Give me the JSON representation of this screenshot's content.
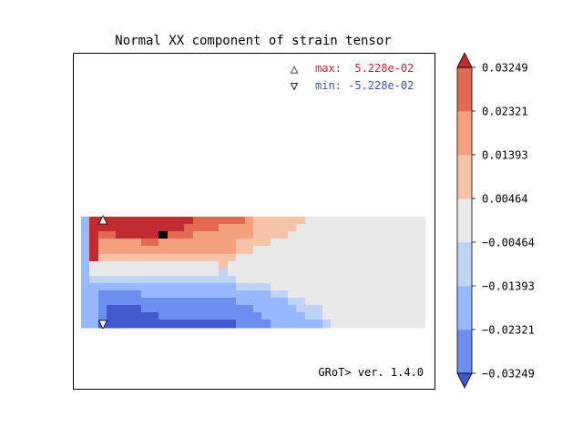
{
  "chart_data": {
    "type": "heatmap",
    "title": "Normal XX component of strain tensor",
    "annotations": {
      "max_label": "max:  5.228e-02",
      "min_label": "min: -5.228e-02",
      "max_marker": "△",
      "min_marker": "▽",
      "version": "GRoT> ver. 1.4.0"
    },
    "colorbar": {
      "ticks": [
        "0.03249",
        "0.02321",
        "0.01393",
        "0.00464",
        "−0.00464",
        "−0.01393",
        "−0.02321",
        "−0.03249"
      ],
      "levels": [
        -0.03249,
        -0.02321,
        -0.01393,
        -0.00464,
        0.00464,
        0.01393,
        0.02321,
        0.03249
      ],
      "band_colors": [
        "#4358cb",
        "#6b8ef0",
        "#97b8ff",
        "#bfd3f6",
        "#e8e8e8",
        "#f6c3a8",
        "#f4a07e",
        "#e26952",
        "#c12b32"
      ],
      "extend": "both"
    },
    "field_rows": [
      "2888888888888777777655555544444444444444",
      "2888888888887777666655555444444444444444",
      "2877888889777666666655554444444444444444",
      "2866666776666666665555444444444444444444",
      "2866666666666666665544444444444444444444",
      "2855555555555555554444444444444444444444",
      "2444444444444444544444444444444444444444",
      "2444444444444444344444444444444444444444",
      "2333333333333333334444444444444444444444",
      "2222222222222222223333444444444444444444",
      "2211111222222222222222334444444444444444",
      "2211111111111111112222223344444444444444",
      "2210000111111111111122222333444444444444",
      "2210000001111111111112222233444444444444",
      "2200000000000000001111222222344444444444"
    ]
  },
  "colors": {
    "max_text": "#c7252b",
    "min_text": "#3a53c4",
    "empty": "#e8e8e8",
    "frame": "#000000"
  }
}
